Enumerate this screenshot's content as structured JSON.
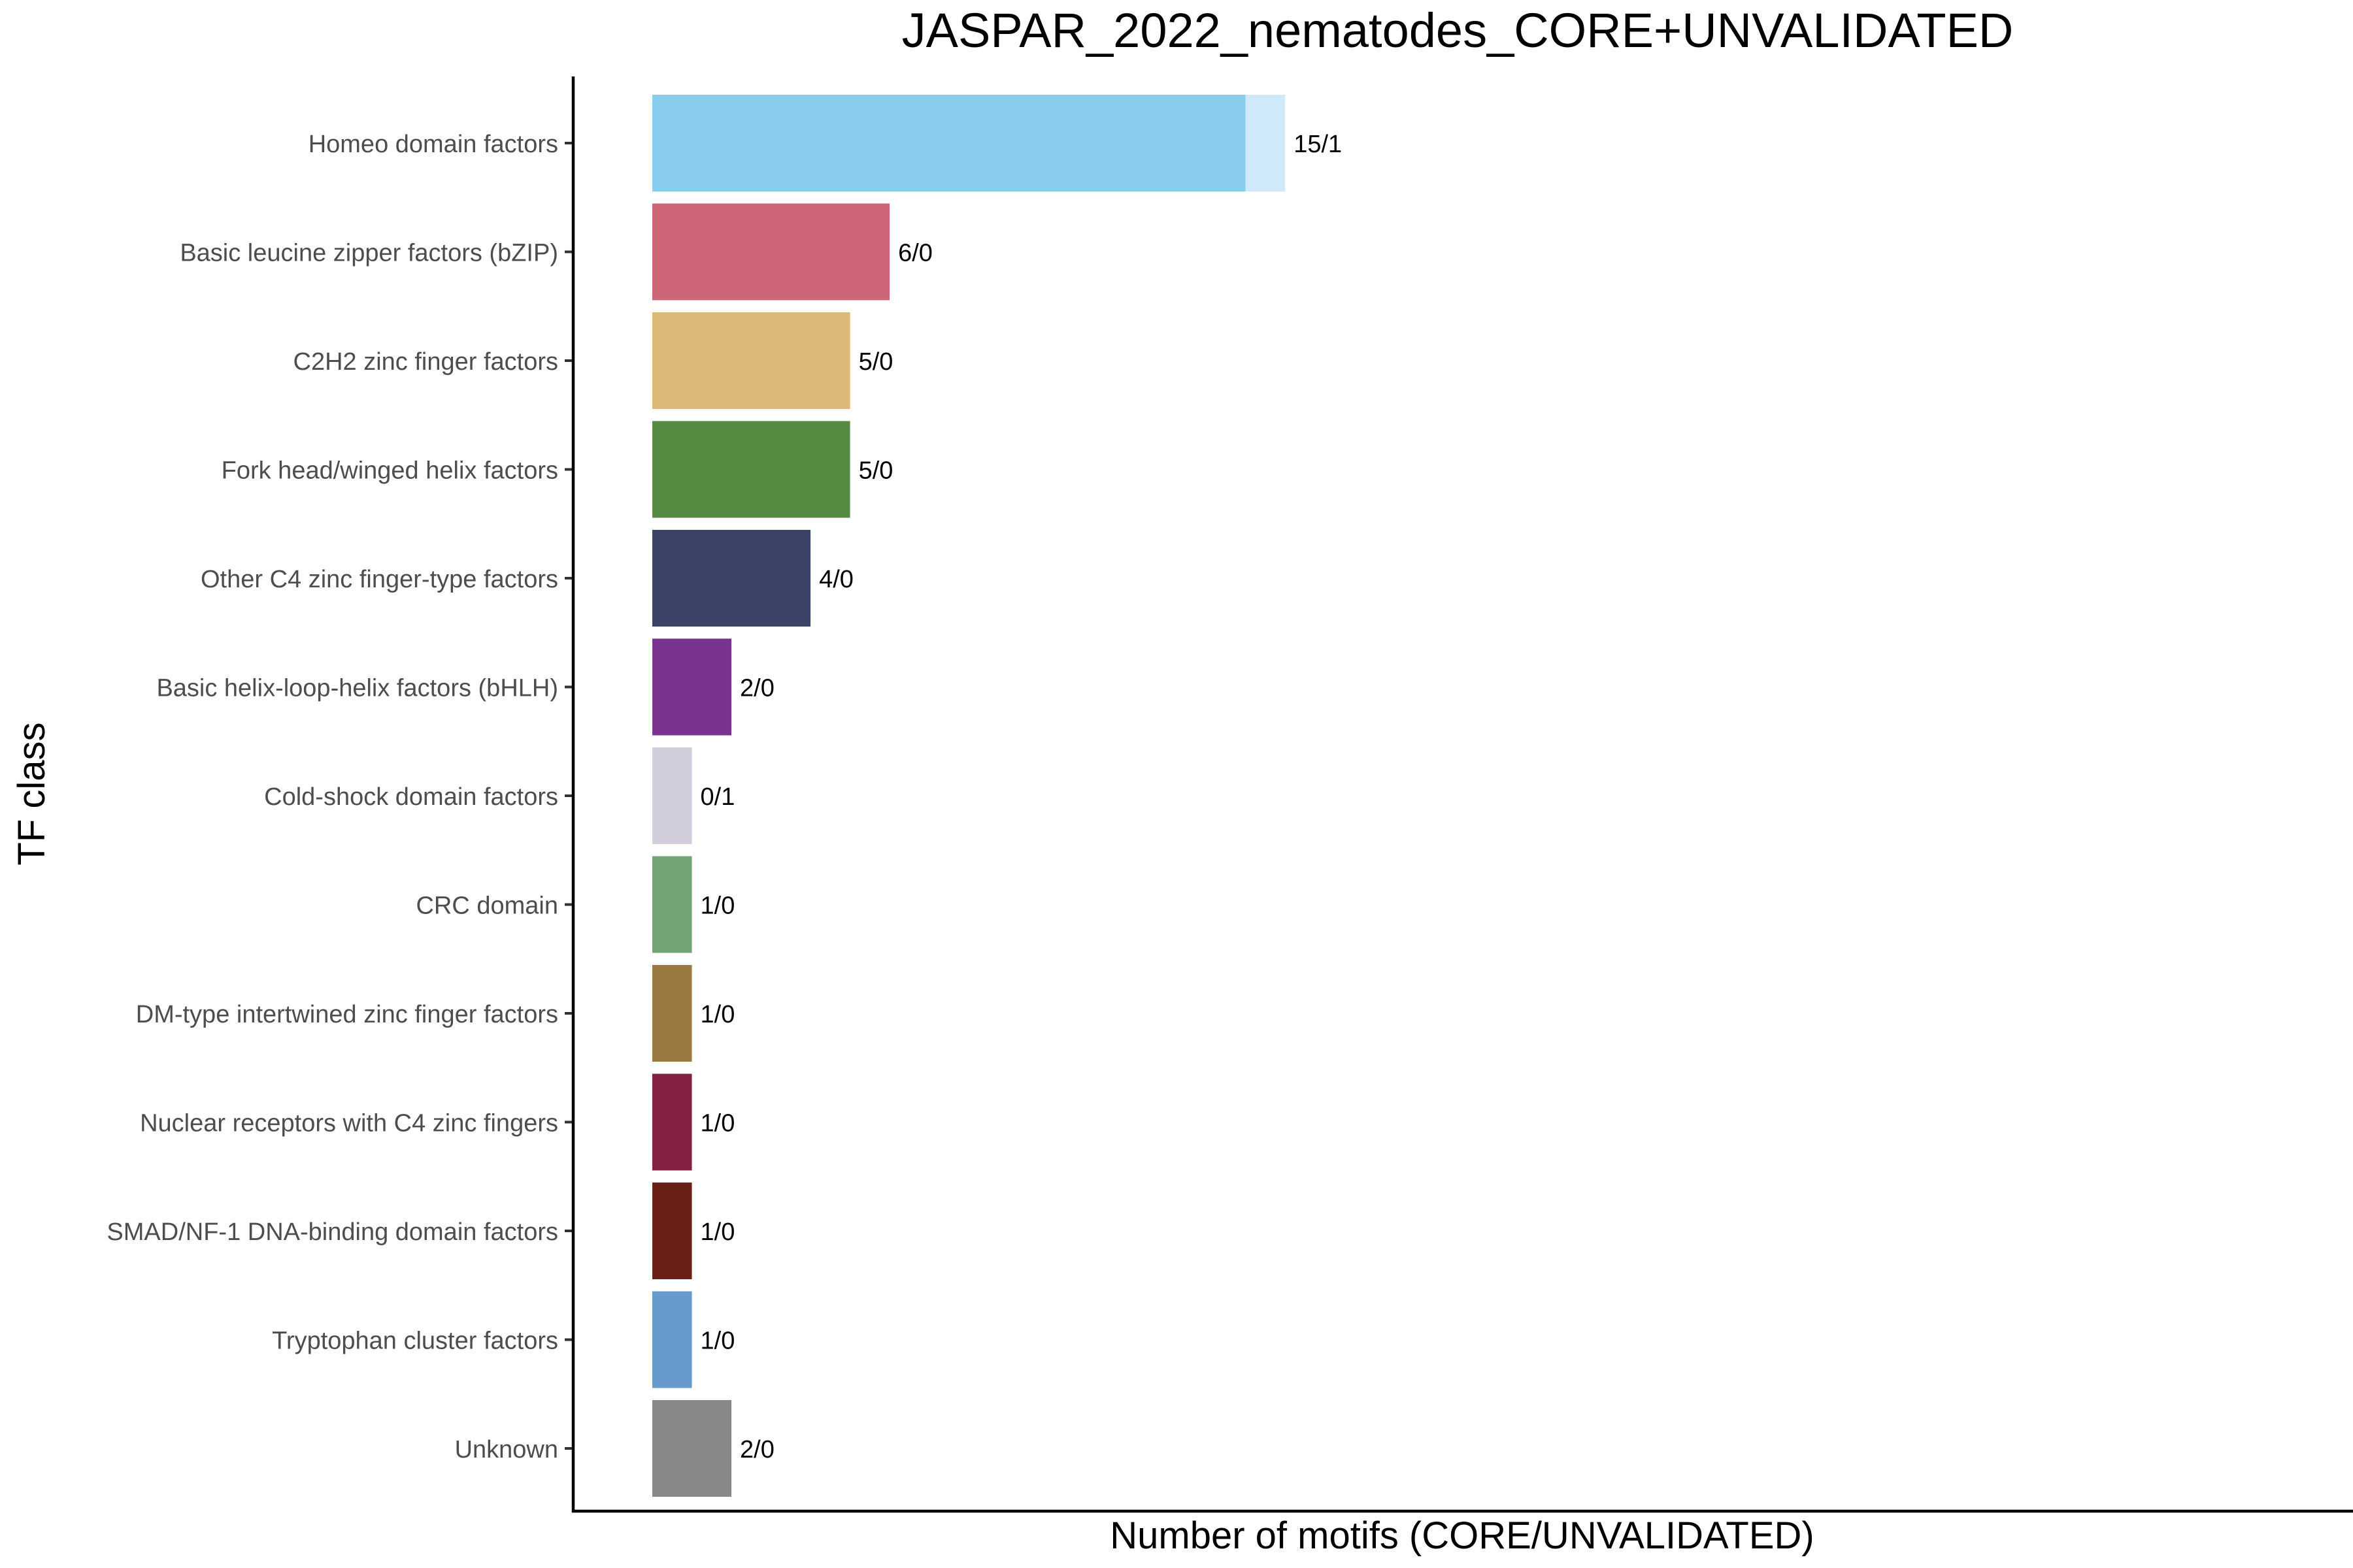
{
  "chart_data": {
    "type": "bar",
    "orientation": "horizontal",
    "stacked": true,
    "title": "JASPAR_2022_nematodes_CORE+UNVALIDATED",
    "xlabel": "Number of motifs (CORE/UNVALIDATED)",
    "ylabel": "TF class",
    "xlim": [
      -2,
      43
    ],
    "x_tick_labels_shown": false,
    "grid": false,
    "legend": "none",
    "categories": [
      "Homeo domain factors",
      "Basic leucine zipper factors (bZIP)",
      "C2H2 zinc finger factors",
      "Fork head/winged helix factors",
      "Other C4 zinc finger-type factors",
      "Basic helix-loop-helix factors (bHLH)",
      "Cold-shock domain factors",
      "CRC domain",
      "DM-type intertwined zinc finger factors",
      "Nuclear receptors with C4 zinc fingers",
      "SMAD/NF-1 DNA-binding domain factors",
      "Tryptophan cluster factors",
      "Unknown"
    ],
    "series": [
      {
        "key": "core",
        "values": [
          15,
          6,
          5,
          5,
          4,
          2,
          0,
          1,
          1,
          1,
          1,
          1,
          2
        ]
      },
      {
        "key": "unvalidated",
        "values": [
          1,
          0,
          0,
          0,
          0,
          0,
          1,
          0,
          0,
          0,
          0,
          0,
          0
        ]
      }
    ],
    "bar_labels": [
      "15/1",
      "6/0",
      "5/0",
      "5/0",
      "4/0",
      "2/0",
      "0/1",
      "1/0",
      "1/0",
      "1/0",
      "1/0",
      "1/0",
      "2/0"
    ],
    "colors": {
      "core": [
        "#88CCEE",
        "#CC6677",
        "#DDB877",
        "#558B42",
        "#3B4267",
        "#7A3390",
        "#CCCCCC",
        "#71A474",
        "#9A7A40",
        "#842042",
        "#6B2015",
        "#6699CC",
        "#888888"
      ],
      "unvalidated": [
        "#CFE9F8",
        "#E8C0C7",
        "#F0E1C6",
        "#B9D0B0",
        "#B3B6C4",
        "#C8A7D1",
        "#D1CDDA",
        "#C1D9C2",
        "#D5C7A6",
        "#D3A3B3",
        "#C4A29C",
        "#C2D6EB",
        "#CFCFCF"
      ]
    }
  }
}
